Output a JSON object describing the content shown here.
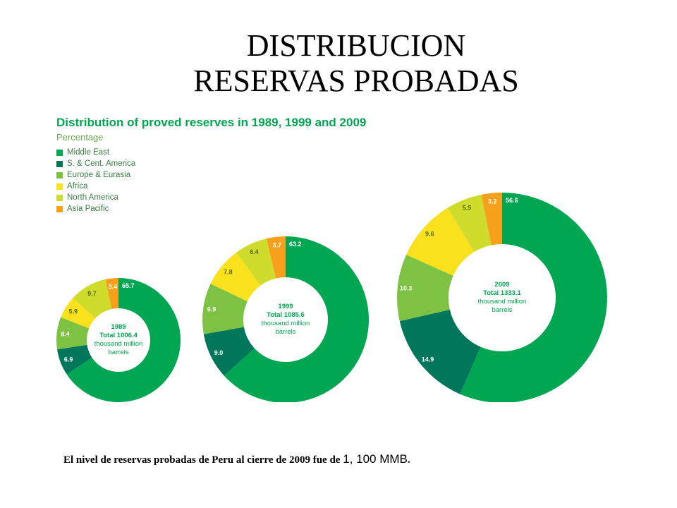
{
  "slide": {
    "title_line1": "DISTRIBUCION",
    "title_line2": "RESERVAS PROBADAS",
    "footnote_text": "El nivel de reservas probadas de Peru al cierre de 2009 fue de ",
    "footnote_amount": "1, 100 MMB",
    "footnote_end": "."
  },
  "chart_data": {
    "type": "pie",
    "variant": "donut",
    "title": "Distribution of proved reserves in 1989, 1999 and 2009",
    "subtitle": "Percentage",
    "legend_position": "top-left",
    "categories": [
      "Middle East",
      "S. & Cent. America",
      "Europe & Eurasia",
      "Africa",
      "North America",
      "Asia Pacific"
    ],
    "colors": [
      "#00a651",
      "#00775a",
      "#7dc242",
      "#f9e11e",
      "#cfdc2c",
      "#f7a01c"
    ],
    "series": [
      {
        "year": "1989",
        "center_total": "Total 1006.4",
        "center_unit_line1": "thousand million",
        "center_unit_line2": "barrels",
        "values": [
          65.7,
          6.9,
          8.4,
          5.9,
          9.7,
          3.4
        ],
        "labels": [
          "65.7",
          "6.9",
          "8.4",
          "5.9",
          "9.7",
          "3.4"
        ]
      },
      {
        "year": "1999",
        "center_total": "Total 1085.6",
        "center_unit_line1": "thousand million",
        "center_unit_line2": "barrels",
        "values": [
          63.2,
          9.0,
          9.9,
          7.8,
          6.4,
          3.7
        ],
        "labels": [
          "63.2",
          "9.0",
          "9.9",
          "7.8",
          "6.4",
          "3.7"
        ]
      },
      {
        "year": "2009",
        "center_total": "Total 1333.1",
        "center_unit_line1": "thousand million",
        "center_unit_line2": "barrels",
        "values": [
          56.6,
          14.9,
          10.3,
          9.6,
          5.5,
          3.2
        ],
        "labels": [
          "56.6",
          "14.9",
          "10.3",
          "9.6",
          "5.5",
          "3.2"
        ]
      }
    ]
  }
}
